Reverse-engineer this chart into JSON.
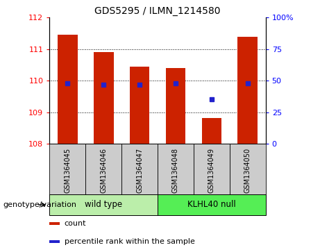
{
  "title": "GDS5295 / ILMN_1214580",
  "samples": [
    "GSM1364045",
    "GSM1364046",
    "GSM1364047",
    "GSM1364048",
    "GSM1364049",
    "GSM1364050"
  ],
  "bar_values": [
    111.45,
    110.9,
    110.45,
    110.4,
    108.82,
    111.4
  ],
  "bar_bottom": 108.0,
  "percentile_ranks": [
    48,
    47,
    47,
    48,
    35,
    48
  ],
  "ylim_left": [
    108,
    112
  ],
  "ylim_right": [
    0,
    100
  ],
  "yticks_left": [
    108,
    109,
    110,
    111,
    112
  ],
  "yticks_right": [
    0,
    25,
    50,
    75,
    100
  ],
  "ytick_right_labels": [
    "0",
    "25",
    "50",
    "75",
    "100%"
  ],
  "bar_color": "#cc2200",
  "dot_color": "#2222cc",
  "grid_color": "#000000",
  "genotype_groups": [
    {
      "label": "wild type",
      "start": 0,
      "end": 3,
      "color": "#bbeeaa"
    },
    {
      "label": "KLHL40 null",
      "start": 3,
      "end": 6,
      "color": "#55ee55"
    }
  ],
  "xlabel_genotype": "genotype/variation",
  "legend_items": [
    {
      "color": "#cc2200",
      "label": "count"
    },
    {
      "color": "#2222cc",
      "label": "percentile rank within the sample"
    }
  ],
  "bar_width": 0.55,
  "label_box_color": "#cccccc",
  "fig_width": 4.61,
  "fig_height": 3.63,
  "dpi": 100
}
